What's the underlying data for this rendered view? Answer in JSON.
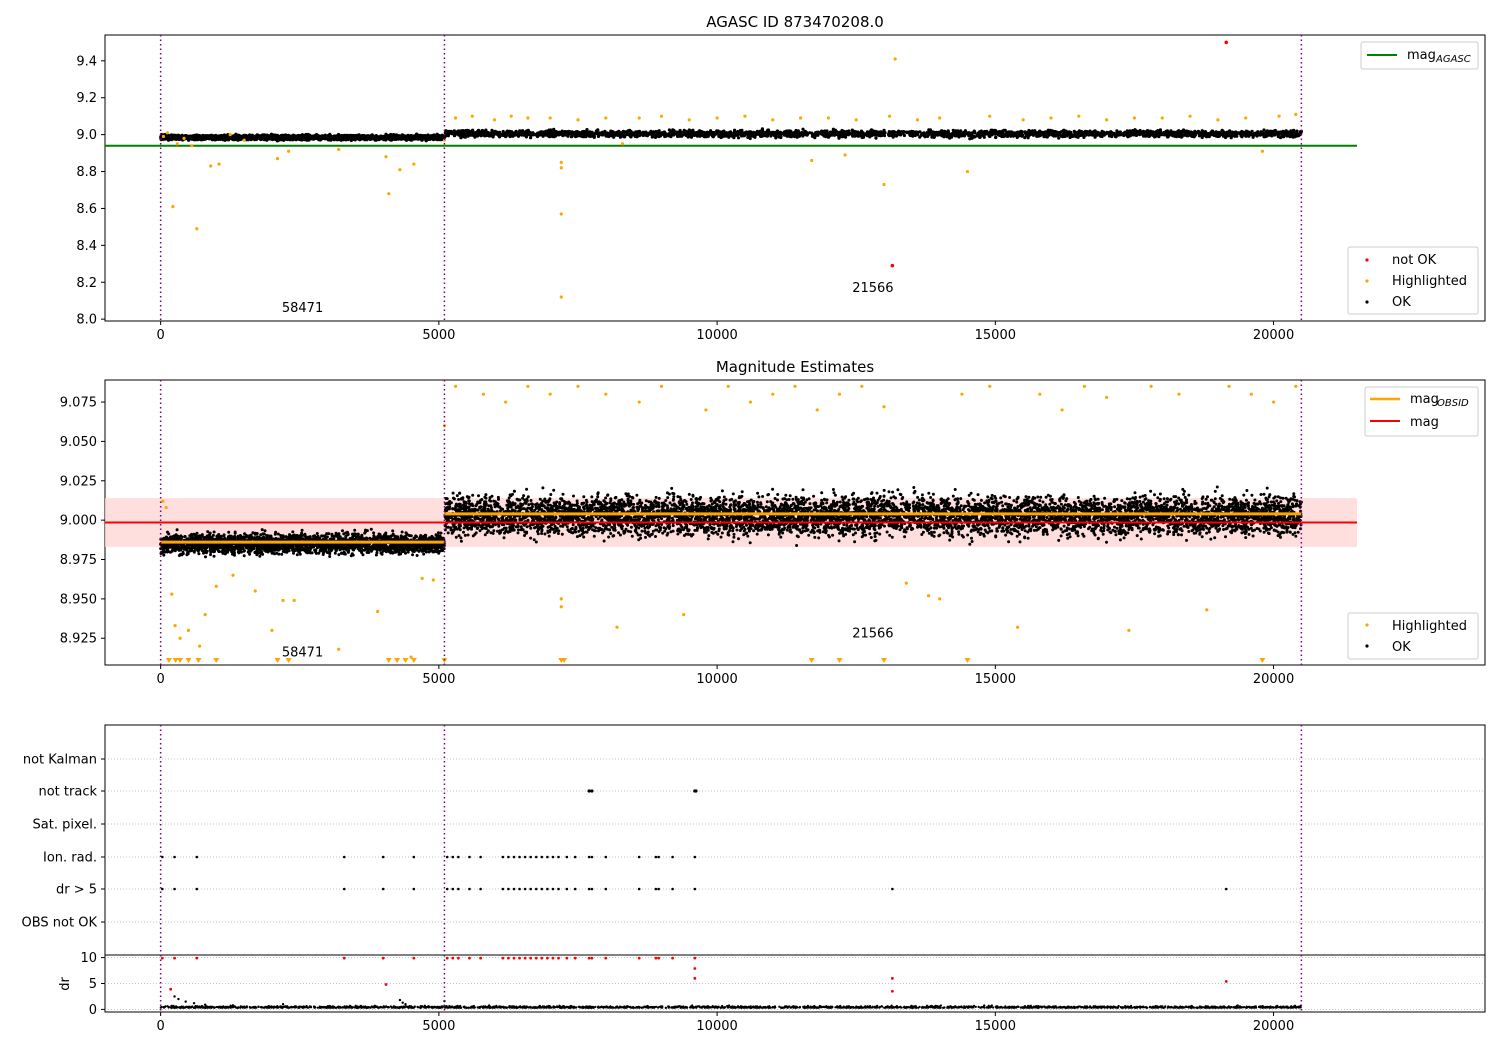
{
  "figure": {
    "title": "AGASC ID 873470208.0"
  },
  "colors": {
    "ok": "#000000",
    "highlighted": "#ffa500",
    "not_ok": "#ff0000",
    "mag_agasc": "#008000",
    "mag_obsid": "#ffa500",
    "mag": "#ff0000",
    "obs_boundary": "#800080",
    "band": "#ffd6d6"
  },
  "chart_data": [
    {
      "type": "scatter",
      "title": "AGASC ID 873470208.0",
      "xlim": [
        -1000,
        23800
      ],
      "ylim": [
        7.99,
        9.54
      ],
      "xticks": [
        "0",
        "5000",
        "10000",
        "15000",
        "20000"
      ],
      "yticks": [
        "8.0",
        "8.2",
        "8.4",
        "8.6",
        "8.8",
        "9.0",
        "9.2",
        "9.4"
      ],
      "grid": false,
      "legend_top": {
        "placement": "top-right",
        "entries": [
          {
            "label": "mag",
            "subscript": "AGASC"
          }
        ]
      },
      "legend_bottom": {
        "placement": "bottom-right",
        "entries": [
          "not OK",
          "Highlighted",
          "OK"
        ]
      },
      "obs_boundaries": [
        0,
        5100,
        20500
      ],
      "obs_labels": [
        {
          "text": "58471",
          "x": 2550,
          "y": 8.06
        },
        {
          "text": "21566",
          "x": 12800,
          "y": 8.17
        }
      ],
      "mag_agasc": {
        "value": 8.94,
        "xrange": [
          -1000,
          21500
        ]
      },
      "series": [
        {
          "name": "OK",
          "segments": [
            {
              "x0": 0,
              "x1": 5100,
              "center": 8.985,
              "spread": 0.012
            },
            {
              "x0": 5100,
              "x1": 20500,
              "center": 9.005,
              "spread": 0.018
            }
          ]
        },
        {
          "name": "Highlighted",
          "points": [
            [
              50,
              8.99
            ],
            [
              120,
              9.01
            ],
            [
              220,
              8.61
            ],
            [
              300,
              8.95
            ],
            [
              420,
              8.98
            ],
            [
              560,
              8.94
            ],
            [
              650,
              8.49
            ],
            [
              900,
              8.83
            ],
            [
              1050,
              8.84
            ],
            [
              1250,
              9.0
            ],
            [
              1500,
              8.97
            ],
            [
              2100,
              8.87
            ],
            [
              2300,
              8.91
            ],
            [
              3200,
              8.92
            ],
            [
              4100,
              8.68
            ],
            [
              4050,
              8.88
            ],
            [
              4300,
              8.81
            ],
            [
              4550,
              8.84
            ],
            [
              5100,
              8.97
            ],
            [
              5300,
              9.09
            ],
            [
              5600,
              9.1
            ],
            [
              6000,
              9.08
            ],
            [
              6300,
              9.1
            ],
            [
              6600,
              9.09
            ],
            [
              7000,
              9.09
            ],
            [
              7200,
              8.57
            ],
            [
              7200,
              8.12
            ],
            [
              7200,
              8.82
            ],
            [
              7200,
              8.85
            ],
            [
              7500,
              9.08
            ],
            [
              8000,
              9.09
            ],
            [
              8300,
              8.95
            ],
            [
              8600,
              9.09
            ],
            [
              9000,
              9.1
            ],
            [
              9500,
              9.08
            ],
            [
              10000,
              9.09
            ],
            [
              10500,
              9.1
            ],
            [
              11000,
              9.08
            ],
            [
              11500,
              9.09
            ],
            [
              11700,
              8.86
            ],
            [
              12000,
              9.09
            ],
            [
              12300,
              8.89
            ],
            [
              12500,
              9.08
            ],
            [
              13000,
              8.73
            ],
            [
              13100,
              9.1
            ],
            [
              13200,
              9.41
            ],
            [
              13600,
              9.08
            ],
            [
              14000,
              9.09
            ],
            [
              14500,
              8.8
            ],
            [
              14900,
              9.1
            ],
            [
              15500,
              9.08
            ],
            [
              16000,
              9.09
            ],
            [
              16500,
              9.1
            ],
            [
              17000,
              9.08
            ],
            [
              17500,
              9.09
            ],
            [
              18000,
              9.09
            ],
            [
              18500,
              9.1
            ],
            [
              19000,
              9.08
            ],
            [
              19500,
              9.09
            ],
            [
              19800,
              8.91
            ],
            [
              20100,
              9.1
            ],
            [
              20400,
              9.11
            ]
          ]
        },
        {
          "name": "not OK",
          "points": [
            [
              13150,
              8.29
            ],
            [
              19150,
              9.5
            ]
          ]
        }
      ]
    },
    {
      "type": "scatter",
      "title": "Magnitude Estimates",
      "xlim": [
        -1000,
        23800
      ],
      "ylim": [
        8.908,
        9.089
      ],
      "xticks": [
        "0",
        "5000",
        "10000",
        "15000",
        "20000"
      ],
      "yticks": [
        "8.925",
        "8.950",
        "8.975",
        "9.000",
        "9.025",
        "9.050",
        "9.075"
      ],
      "grid": false,
      "legend_top": {
        "placement": "top-right",
        "entries": [
          {
            "label": "mag",
            "subscript": "OBSID"
          },
          {
            "label": "mag",
            "subscript": ""
          }
        ]
      },
      "legend_bottom": {
        "placement": "bottom-right",
        "entries": [
          "Highlighted",
          "OK"
        ]
      },
      "obs_boundaries": [
        0,
        5100,
        20500
      ],
      "obs_labels": [
        {
          "text": "58471",
          "x": 2550,
          "y": 8.916
        },
        {
          "text": "21566",
          "x": 12800,
          "y": 8.928
        }
      ],
      "mag": {
        "value": 8.9985,
        "band": [
          8.983,
          9.014
        ],
        "xrange": [
          -1000,
          21500
        ]
      },
      "mag_obsid": [
        {
          "x0": 0,
          "x1": 5100,
          "value": 8.986
        },
        {
          "x0": 5100,
          "x1": 20500,
          "value": 9.004
        }
      ],
      "series": [
        {
          "name": "OK",
          "segments": [
            {
              "x0": 0,
              "x1": 5100,
              "center": 8.985,
              "spread": 0.006
            },
            {
              "x0": 5100,
              "x1": 20500,
              "center": 9.003,
              "spread": 0.012
            }
          ]
        },
        {
          "name": "Highlighted",
          "points": [
            [
              40,
              9.012
            ],
            [
              100,
              9.008
            ],
            [
              200,
              8.953
            ],
            [
              260,
              8.933
            ],
            [
              350,
              8.925
            ],
            [
              500,
              8.93
            ],
            [
              700,
              8.92
            ],
            [
              800,
              8.94
            ],
            [
              1000,
              8.958
            ],
            [
              1300,
              8.965
            ],
            [
              1700,
              8.955
            ],
            [
              2000,
              8.93
            ],
            [
              2200,
              8.949
            ],
            [
              2400,
              8.949
            ],
            [
              3200,
              8.918
            ],
            [
              3900,
              8.942
            ],
            [
              4500,
              8.913
            ],
            [
              4700,
              8.963
            ],
            [
              4900,
              8.962
            ],
            [
              5100,
              9.06
            ],
            [
              5300,
              9.085
            ],
            [
              5800,
              9.08
            ],
            [
              6200,
              9.075
            ],
            [
              6600,
              9.085
            ],
            [
              7000,
              9.08
            ],
            [
              7200,
              8.95
            ],
            [
              7200,
              8.945
            ],
            [
              7500,
              9.085
            ],
            [
              8000,
              9.08
            ],
            [
              8200,
              8.932
            ],
            [
              8600,
              9.075
            ],
            [
              9000,
              9.085
            ],
            [
              9400,
              8.94
            ],
            [
              9800,
              9.07
            ],
            [
              10200,
              9.085
            ],
            [
              10600,
              9.075
            ],
            [
              11000,
              9.08
            ],
            [
              11400,
              9.085
            ],
            [
              11800,
              9.07
            ],
            [
              12200,
              9.08
            ],
            [
              12600,
              9.085
            ],
            [
              13000,
              9.072
            ],
            [
              13400,
              8.96
            ],
            [
              13800,
              8.952
            ],
            [
              14000,
              8.95
            ],
            [
              14400,
              9.08
            ],
            [
              14900,
              9.085
            ],
            [
              15400,
              8.932
            ],
            [
              15800,
              9.08
            ],
            [
              16200,
              9.07
            ],
            [
              16600,
              9.085
            ],
            [
              17000,
              9.078
            ],
            [
              17400,
              8.93
            ],
            [
              17800,
              9.085
            ],
            [
              18300,
              9.08
            ],
            [
              18800,
              8.943
            ],
            [
              19200,
              9.085
            ],
            [
              19600,
              9.08
            ],
            [
              20000,
              9.075
            ],
            [
              20400,
              9.085
            ]
          ]
        }
      ],
      "clipped_low": [
        150,
        270,
        350,
        500,
        680,
        1000,
        2100,
        2300,
        4100,
        4250,
        4400,
        4550,
        5100,
        7200,
        7250,
        11700,
        12200,
        13000,
        14500,
        19800
      ]
    },
    {
      "type": "scatter",
      "title": "",
      "xlim": [
        -1000,
        23800
      ],
      "xticks": [
        "0",
        "5000",
        "10000",
        "15000",
        "20000"
      ],
      "flag_rows": [
        "not Kalman",
        "not track",
        "Sat. pixel.",
        "Ion. rad.",
        "dr > 5",
        "OBS not OK"
      ],
      "obs_boundaries": [
        0,
        5100,
        20500
      ],
      "flag_points": {
        "not Kalman": [],
        "not track": [
          7700,
          7750,
          9600,
          9620
        ],
        "Sat. pixel.": [],
        "Ion. rad.": [
          30,
          250,
          650,
          3300,
          4000,
          4550,
          5150,
          5250,
          5350,
          5550,
          5750,
          6150,
          6250,
          6350,
          6450,
          6550,
          6650,
          6750,
          6850,
          6950,
          7050,
          7150,
          7300,
          7450,
          7700,
          7750,
          8000,
          8600,
          8900,
          8950,
          9200,
          9600
        ],
        "dr > 5": [
          30,
          250,
          650,
          3300,
          4000,
          4550,
          5150,
          5250,
          5350,
          5550,
          5750,
          6150,
          6250,
          6350,
          6450,
          6550,
          6650,
          6750,
          6850,
          6950,
          7050,
          7150,
          7300,
          7450,
          7700,
          7750,
          8000,
          8600,
          8900,
          8950,
          9200,
          9600,
          13150,
          19150
        ],
        "OBS not OK": []
      }
    },
    {
      "type": "scatter",
      "title": "",
      "ylabel": "dr",
      "xlim": [
        -1000,
        23800
      ],
      "ylim": [
        -0.5,
        10.5
      ],
      "xticks": [
        "0",
        "5000",
        "10000",
        "15000",
        "20000"
      ],
      "yticks": [
        "0",
        "5",
        "10"
      ],
      "obs_boundaries": [
        0,
        5100,
        20500
      ],
      "ok_band": {
        "x0": 0,
        "x1": 20500,
        "center": 0.3,
        "spread": 0.4
      },
      "ok_points": [
        [
          250,
          2.5
        ],
        [
          320,
          2.0
        ],
        [
          450,
          1.5
        ],
        [
          600,
          1.2
        ],
        [
          800,
          0.9
        ],
        [
          1300,
          0.8
        ],
        [
          2200,
          1.0
        ],
        [
          4300,
          1.8
        ],
        [
          4350,
          1.3
        ],
        [
          4400,
          1.0
        ],
        [
          5100,
          1.6
        ]
      ],
      "not_ok_points": [
        [
          30,
          9.9
        ],
        [
          250,
          9.9
        ],
        [
          650,
          9.9
        ],
        [
          3300,
          9.9
        ],
        [
          4000,
          9.9
        ],
        [
          4550,
          9.9
        ],
        [
          5150,
          9.9
        ],
        [
          5250,
          9.9
        ],
        [
          5350,
          9.9
        ],
        [
          5550,
          9.9
        ],
        [
          5750,
          9.9
        ],
        [
          6150,
          9.9
        ],
        [
          6250,
          9.9
        ],
        [
          6350,
          9.9
        ],
        [
          6450,
          9.9
        ],
        [
          6550,
          9.9
        ],
        [
          6650,
          9.9
        ],
        [
          6750,
          9.9
        ],
        [
          6850,
          9.9
        ],
        [
          6950,
          9.9
        ],
        [
          7050,
          9.9
        ],
        [
          7150,
          9.9
        ],
        [
          7300,
          9.9
        ],
        [
          7450,
          9.9
        ],
        [
          7700,
          9.9
        ],
        [
          7750,
          9.9
        ],
        [
          8000,
          9.9
        ],
        [
          8600,
          9.9
        ],
        [
          8900,
          9.9
        ],
        [
          8950,
          9.9
        ],
        [
          9200,
          9.9
        ],
        [
          9600,
          9.9
        ],
        [
          180,
          3.9
        ],
        [
          4050,
          4.8
        ],
        [
          9600,
          7.9
        ],
        [
          9600,
          6.0
        ],
        [
          13150,
          6.0
        ],
        [
          13150,
          3.5
        ],
        [
          19150,
          5.4
        ]
      ]
    }
  ]
}
